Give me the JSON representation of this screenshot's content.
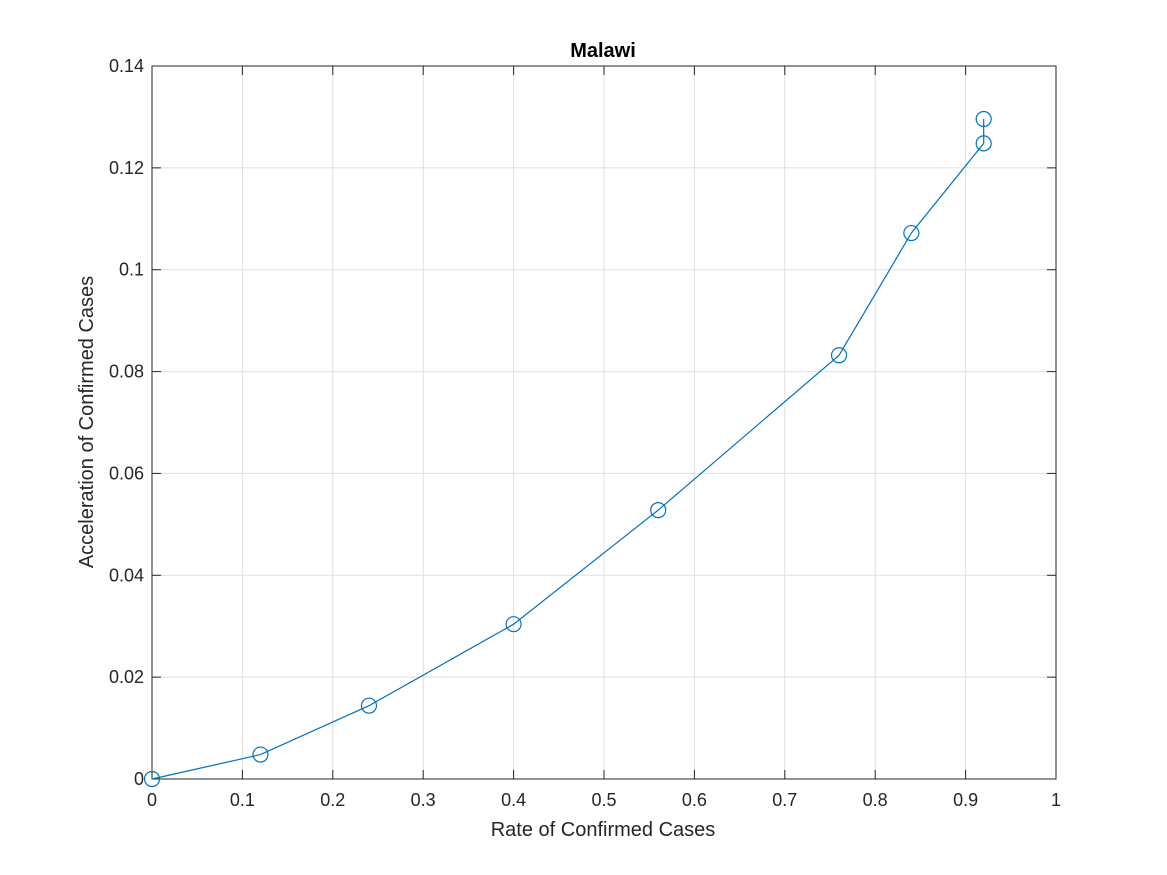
{
  "chart_data": {
    "type": "line",
    "title": "Malawi",
    "xlabel": "Rate of Confirmed Cases",
    "ylabel": "Acceleration of Confirmed Cases",
    "xlim": [
      0,
      1
    ],
    "ylim": [
      0,
      0.14
    ],
    "xticks": [
      "0",
      "0.1",
      "0.2",
      "0.3",
      "0.4",
      "0.5",
      "0.6",
      "0.7",
      "0.8",
      "0.9",
      "1"
    ],
    "yticks": [
      "0",
      "0.02",
      "0.04",
      "0.06",
      "0.08",
      "0.1",
      "0.12",
      "0.14"
    ],
    "grid": true,
    "color": "#0072bd",
    "marker": "circle",
    "series": [
      {
        "x": [
          0,
          0.12,
          0.24,
          0.4,
          0.56,
          0.76,
          0.84,
          0.92,
          0.92
        ],
        "y": [
          0,
          0.0048,
          0.0144,
          0.0304,
          0.0528,
          0.0832,
          0.1072,
          0.1248,
          0.1296
        ]
      }
    ]
  }
}
